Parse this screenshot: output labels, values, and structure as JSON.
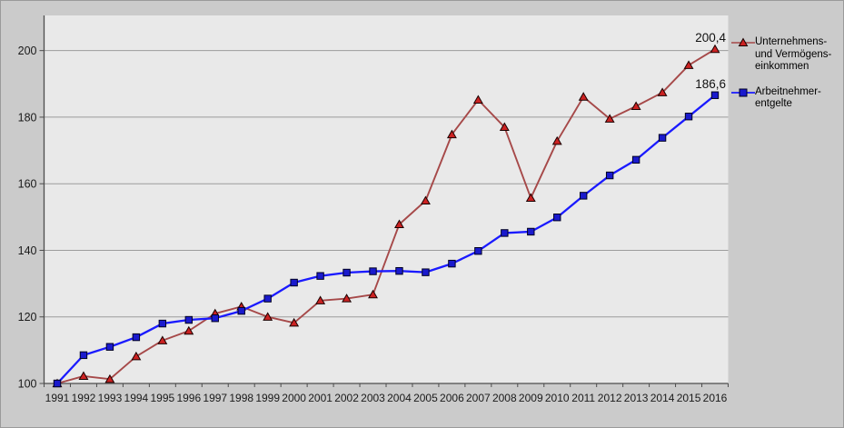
{
  "chart_data": {
    "type": "line",
    "title": "",
    "xlabel": "",
    "ylabel": "",
    "x": [
      1991,
      1992,
      1993,
      1994,
      1995,
      1996,
      1997,
      1998,
      1999,
      2000,
      2001,
      2002,
      2003,
      2004,
      2005,
      2006,
      2007,
      2008,
      2009,
      2010,
      2011,
      2012,
      2013,
      2014,
      2015,
      2016
    ],
    "series": [
      {
        "name": "Unternehmens- und Vermögenseinkommen",
        "values": [
          100.0,
          102.2,
          101.3,
          108.1,
          112.9,
          115.8,
          121.0,
          123.1,
          120.0,
          118.2,
          124.9,
          125.5,
          126.7,
          147.8,
          154.9,
          174.8,
          185.2,
          177.0,
          155.7,
          172.8,
          186.1,
          179.5,
          183.3,
          187.4,
          195.6,
          200.4
        ],
        "line_color": "#a64949",
        "marker": "triangle",
        "marker_fill": "#cc2222",
        "marker_stroke": "#1a0000",
        "end_label": "200,4"
      },
      {
        "name": "Arbeitnehmerentgelte",
        "values": [
          100.0,
          108.5,
          111.0,
          113.9,
          118.0,
          119.1,
          119.6,
          121.8,
          125.5,
          130.3,
          132.3,
          133.3,
          133.7,
          133.8,
          133.4,
          136.0,
          139.8,
          145.2,
          145.6,
          149.9,
          156.4,
          162.5,
          167.2,
          173.8,
          180.2,
          186.6
        ],
        "line_color": "#1a1aff",
        "marker": "square",
        "marker_fill": "#1a1acd",
        "marker_stroke": "#000022",
        "end_label": "186,6"
      }
    ],
    "yticks": [
      100,
      120,
      140,
      160,
      180,
      200
    ],
    "ylim": [
      100,
      210.6
    ],
    "grid": true,
    "legend_position": "right"
  },
  "legend": {
    "items": [
      {
        "lines": "Unternehmens-\nund Vermögens-\neinkommen"
      },
      {
        "lines": "Arbeitnehmer-\nentgelte"
      }
    ]
  },
  "colors": {
    "outer_bg": "#cbcbcb",
    "plot_bg": "#e9e9e9",
    "gridline": "#9c9c9c",
    "axis": "#4d4d4d",
    "tick_label": "#1a1a1a",
    "data_label": "#111111"
  }
}
